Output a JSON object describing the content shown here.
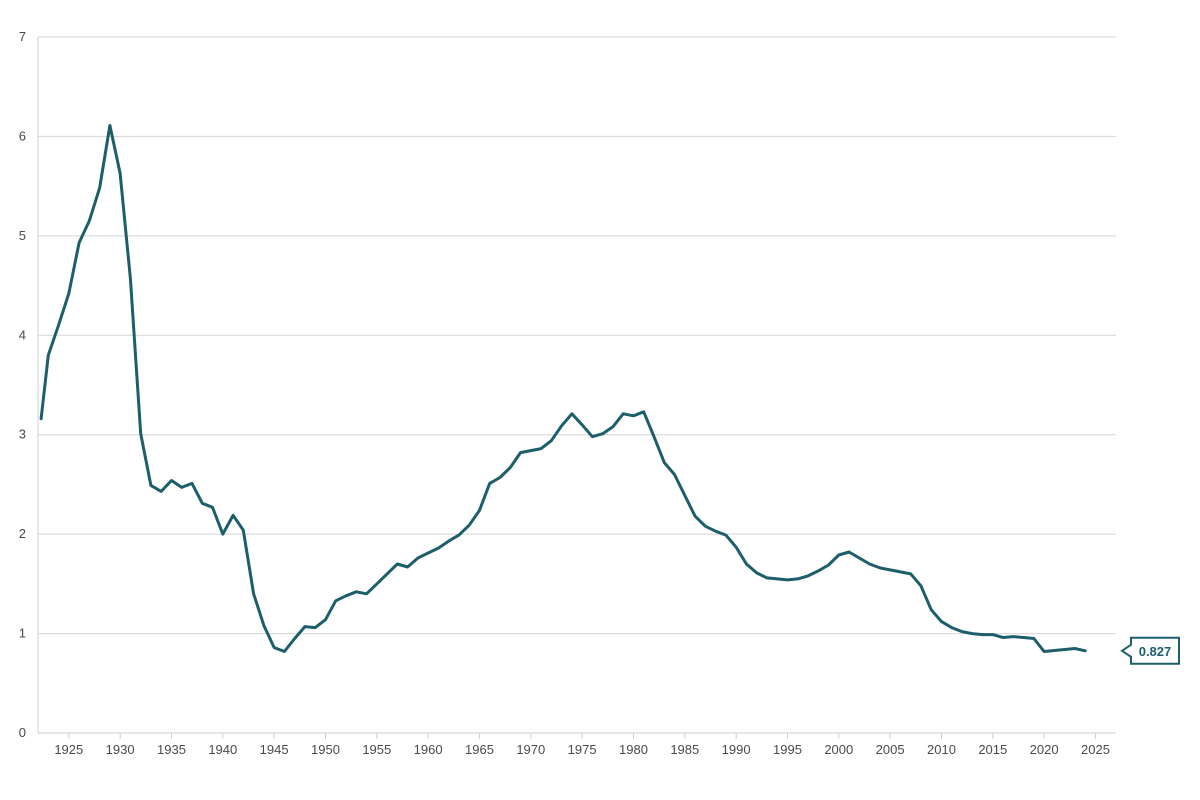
{
  "chart_data": {
    "type": "line",
    "title": "",
    "xlabel": "",
    "ylabel": "",
    "xlim": [
      1922,
      2027
    ],
    "ylim": [
      0,
      7
    ],
    "grid": true,
    "y_ticks": [
      {
        "value": 0,
        "label": "0"
      },
      {
        "value": 1,
        "label": "1"
      },
      {
        "value": 2,
        "label": "2"
      },
      {
        "value": 3,
        "label": "3"
      },
      {
        "value": 4,
        "label": "4"
      },
      {
        "value": 5,
        "label": "5"
      },
      {
        "value": 6,
        "label": "6"
      },
      {
        "value": 7,
        "label": "7"
      }
    ],
    "x_ticks": [
      {
        "value": 1925,
        "label": "1925"
      },
      {
        "value": 1930,
        "label": "1930"
      },
      {
        "value": 1935,
        "label": "1935"
      },
      {
        "value": 1940,
        "label": "1940"
      },
      {
        "value": 1945,
        "label": "1945"
      },
      {
        "value": 1950,
        "label": "1950"
      },
      {
        "value": 1955,
        "label": "1955"
      },
      {
        "value": 1960,
        "label": "1960"
      },
      {
        "value": 1965,
        "label": "1965"
      },
      {
        "value": 1970,
        "label": "1970"
      },
      {
        "value": 1975,
        "label": "1975"
      },
      {
        "value": 1980,
        "label": "1980"
      },
      {
        "value": 1985,
        "label": "1985"
      },
      {
        "value": 1990,
        "label": "1990"
      },
      {
        "value": 1995,
        "label": "1995"
      },
      {
        "value": 2000,
        "label": "2000"
      },
      {
        "value": 2005,
        "label": "2005"
      },
      {
        "value": 2010,
        "label": "2010"
      },
      {
        "value": 2015,
        "label": "2015"
      },
      {
        "value": 2020,
        "label": "2020"
      },
      {
        "value": 2025,
        "label": "2025"
      }
    ],
    "series": [
      {
        "color": "#1d5e6b",
        "points": [
          [
            1922.3,
            3.16
          ],
          [
            1923.0,
            3.8
          ],
          [
            1924.0,
            4.1
          ],
          [
            1925.0,
            4.42
          ],
          [
            1926.0,
            4.93
          ],
          [
            1927.0,
            5.15
          ],
          [
            1928.0,
            5.48
          ],
          [
            1929.0,
            6.11
          ],
          [
            1930.0,
            5.63
          ],
          [
            1931.0,
            4.57
          ],
          [
            1932.0,
            3.01
          ],
          [
            1933.0,
            2.49
          ],
          [
            1934.0,
            2.43
          ],
          [
            1935.0,
            2.54
          ],
          [
            1936.0,
            2.47
          ],
          [
            1937.0,
            2.51
          ],
          [
            1938.0,
            2.31
          ],
          [
            1939.0,
            2.27
          ],
          [
            1940.0,
            2.0
          ],
          [
            1941.0,
            2.19
          ],
          [
            1942.0,
            2.04
          ],
          [
            1943.0,
            1.4
          ],
          [
            1944.0,
            1.08
          ],
          [
            1945.0,
            0.86
          ],
          [
            1946.0,
            0.82
          ],
          [
            1947.0,
            0.95
          ],
          [
            1948.0,
            1.07
          ],
          [
            1949.0,
            1.06
          ],
          [
            1950.0,
            1.14
          ],
          [
            1951.0,
            1.33
          ],
          [
            1952.0,
            1.38
          ],
          [
            1953.0,
            1.42
          ],
          [
            1954.0,
            1.4
          ],
          [
            1955.0,
            1.5
          ],
          [
            1956.0,
            1.6
          ],
          [
            1957.0,
            1.7
          ],
          [
            1958.0,
            1.67
          ],
          [
            1959.0,
            1.76
          ],
          [
            1960.0,
            1.81
          ],
          [
            1961.0,
            1.86
          ],
          [
            1962.0,
            1.93
          ],
          [
            1963.0,
            1.99
          ],
          [
            1964.0,
            2.09
          ],
          [
            1965.0,
            2.24
          ],
          [
            1966.0,
            2.51
          ],
          [
            1967.0,
            2.57
          ],
          [
            1968.0,
            2.67
          ],
          [
            1969.0,
            2.82
          ],
          [
            1970.0,
            2.84
          ],
          [
            1971.0,
            2.86
          ],
          [
            1972.0,
            2.94
          ],
          [
            1973.0,
            3.09
          ],
          [
            1974.0,
            3.21
          ],
          [
            1975.0,
            3.1
          ],
          [
            1976.0,
            2.98
          ],
          [
            1977.0,
            3.01
          ],
          [
            1978.0,
            3.08
          ],
          [
            1979.0,
            3.21
          ],
          [
            1980.0,
            3.19
          ],
          [
            1981.0,
            3.23
          ],
          [
            1982.0,
            2.98
          ],
          [
            1983.0,
            2.72
          ],
          [
            1984.0,
            2.6
          ],
          [
            1985.0,
            2.39
          ],
          [
            1986.0,
            2.18
          ],
          [
            1987.0,
            2.08
          ],
          [
            1988.0,
            2.03
          ],
          [
            1989.0,
            1.99
          ],
          [
            1990.0,
            1.87
          ],
          [
            1991.0,
            1.7
          ],
          [
            1992.0,
            1.61
          ],
          [
            1993.0,
            1.56
          ],
          [
            1994.0,
            1.55
          ],
          [
            1995.0,
            1.54
          ],
          [
            1996.0,
            1.55
          ],
          [
            1997.0,
            1.58
          ],
          [
            1998.0,
            1.63
          ],
          [
            1999.0,
            1.69
          ],
          [
            2000.0,
            1.79
          ],
          [
            2001.0,
            1.82
          ],
          [
            2002.0,
            1.76
          ],
          [
            2003.0,
            1.7
          ],
          [
            2004.0,
            1.66
          ],
          [
            2005.0,
            1.64
          ],
          [
            2006.0,
            1.62
          ],
          [
            2007.0,
            1.6
          ],
          [
            2008.0,
            1.48
          ],
          [
            2009.0,
            1.24
          ],
          [
            2010.0,
            1.12
          ],
          [
            2011.0,
            1.06
          ],
          [
            2012.0,
            1.02
          ],
          [
            2013.0,
            1.0
          ],
          [
            2014.0,
            0.99
          ],
          [
            2015.0,
            0.99
          ],
          [
            2016.0,
            0.96
          ],
          [
            2017.0,
            0.97
          ],
          [
            2018.0,
            0.96
          ],
          [
            2019.0,
            0.95
          ],
          [
            2020.0,
            0.82
          ],
          [
            2021.0,
            0.83
          ],
          [
            2022.0,
            0.84
          ],
          [
            2023.0,
            0.85
          ],
          [
            2024.0,
            0.827
          ]
        ]
      }
    ],
    "last_value_label": "0.827",
    "last_value": 0.827
  }
}
